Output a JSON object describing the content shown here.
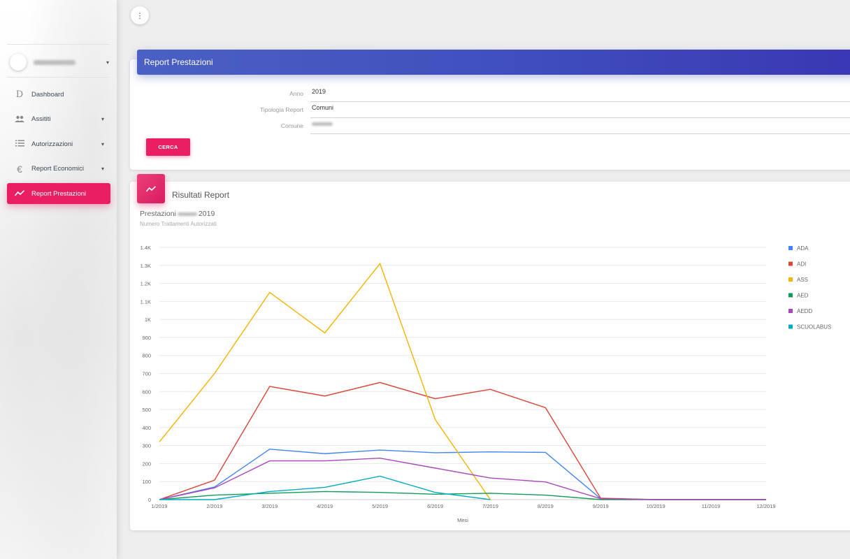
{
  "sidebar": {
    "user_caret": "▾",
    "items": [
      {
        "icon": "D",
        "icon_name": "letter-d-icon",
        "label": "Dashboard",
        "caret": ""
      },
      {
        "icon": "👥",
        "icon_name": "people-icon",
        "label": "Assititi",
        "caret": "▾"
      },
      {
        "icon": "☰",
        "icon_name": "list-icon",
        "label": "Autorizzazioni",
        "caret": "▾"
      },
      {
        "icon": "€",
        "icon_name": "euro-icon",
        "label": "Report Economici",
        "caret": "▾"
      },
      {
        "icon": "∿",
        "icon_name": "trending-icon",
        "label": "Report Prestazioni",
        "caret": ""
      }
    ]
  },
  "header": {
    "menu_icon": "⋮"
  },
  "search_card": {
    "title": "Report Prestazioni",
    "fields": [
      {
        "label": "Anno",
        "value": "2019"
      },
      {
        "label": "Tipologia Report",
        "value": "Comuni"
      },
      {
        "label": "Comune",
        "value": ""
      }
    ],
    "button": "CERCA"
  },
  "results_card": {
    "title": "Risultati Report",
    "chart_title_prefix": "Prestazioni",
    "chart_title_suffix": "2019",
    "chart_subtitle": "Numero Trattamenti Autorizzati"
  },
  "colors": {
    "accent": "#e91e63",
    "header": "#3f51b5"
  },
  "chart_data": {
    "type": "line",
    "xlabel": "Mesi",
    "ylabel": "",
    "ylim": [
      0,
      1400
    ],
    "ytick_labels": [
      "0",
      "100",
      "200",
      "300",
      "400",
      "500",
      "600",
      "700",
      "800",
      "900",
      "1K",
      "1.1K",
      "1.2K",
      "1.3K",
      "1.4K"
    ],
    "categories": [
      "1/2019",
      "2/2019",
      "3/2019",
      "4/2019",
      "5/2019",
      "6/2019",
      "7/2019",
      "8/2019",
      "9/2019",
      "10/2019",
      "11/2019",
      "12/2019"
    ],
    "legend_position": "right",
    "grid": true,
    "series": [
      {
        "name": "ADA",
        "color": "#4285f4",
        "values": [
          0,
          70,
          280,
          255,
          275,
          260,
          265,
          262,
          5,
          0,
          0,
          0
        ]
      },
      {
        "name": "ADI",
        "color": "#db4437",
        "values": [
          0,
          108,
          628,
          575,
          650,
          560,
          612,
          510,
          8,
          0,
          0,
          0
        ]
      },
      {
        "name": "ASS",
        "color": "#f4b400",
        "values": [
          320,
          700,
          1150,
          925,
          1310,
          445,
          0,
          null,
          null,
          null,
          null,
          null
        ]
      },
      {
        "name": "AED",
        "color": "#0f9d58",
        "values": [
          0,
          25,
          35,
          45,
          40,
          30,
          35,
          25,
          0,
          0,
          0,
          0
        ]
      },
      {
        "name": "AEDD",
        "color": "#ab47bc",
        "values": [
          0,
          65,
          215,
          215,
          230,
          175,
          120,
          98,
          5,
          0,
          0,
          0
        ]
      },
      {
        "name": "SCUOLABUS",
        "color": "#00acc1",
        "values": [
          0,
          0,
          45,
          68,
          130,
          40,
          0,
          null,
          null,
          null,
          null,
          null
        ]
      }
    ]
  }
}
